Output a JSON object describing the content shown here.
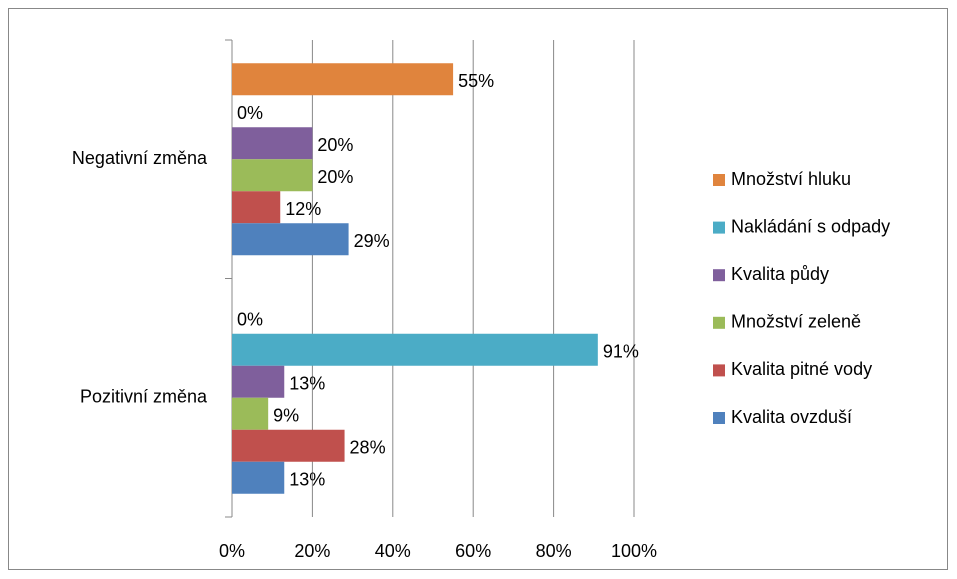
{
  "chart_data": {
    "type": "bar",
    "orientation": "horizontal",
    "categories": [
      "Negativní změna",
      "Pozitivní změna"
    ],
    "series": [
      {
        "name": "Množství hluku",
        "color": "#E0843D",
        "values": [
          55,
          0
        ],
        "value_labels": [
          "55%",
          "0%"
        ]
      },
      {
        "name": "Nakládání s odpady",
        "color": "#4BACC6",
        "values": [
          0,
          91
        ],
        "value_labels": [
          "0%",
          "91%"
        ]
      },
      {
        "name": "Kvalita půdy",
        "color": "#7F5F9C",
        "values": [
          20,
          13
        ],
        "value_labels": [
          "20%",
          "13%"
        ]
      },
      {
        "name": "Množství zeleně",
        "color": "#9BBB59",
        "values": [
          20,
          9
        ],
        "value_labels": [
          "20%",
          "9%"
        ]
      },
      {
        "name": "Kvalita pitné vody",
        "color": "#C0504D",
        "values": [
          12,
          28
        ],
        "value_labels": [
          "12%",
          "28%"
        ]
      },
      {
        "name": "Kvalita ovzduší",
        "color": "#4F81BD",
        "values": [
          29,
          13
        ],
        "value_labels": [
          "29%",
          "13%"
        ]
      }
    ],
    "xlim": [
      0,
      100
    ],
    "xticks": [
      {
        "value": 0,
        "label": "0%"
      },
      {
        "value": 20,
        "label": "20%"
      },
      {
        "value": 40,
        "label": "40%"
      },
      {
        "value": 60,
        "label": "60%"
      },
      {
        "value": 80,
        "label": "80%"
      },
      {
        "value": 100,
        "label": "100%"
      }
    ],
    "grid": true,
    "legend": "right"
  }
}
